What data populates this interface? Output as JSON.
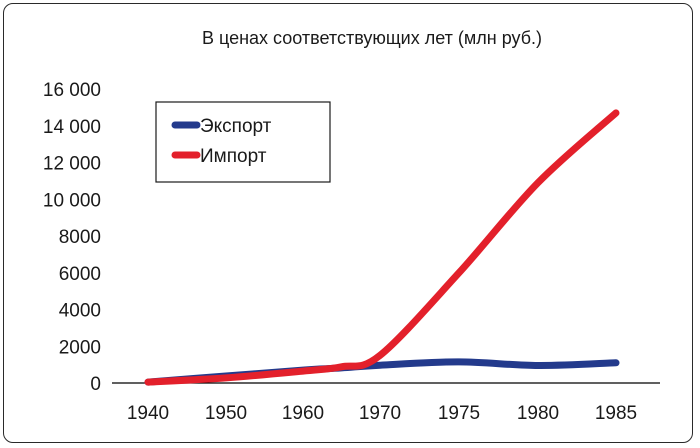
{
  "chart_data": {
    "type": "line",
    "title": "В ценах соответствующих лет (млн руб.)",
    "xlabel": "",
    "ylabel": "",
    "x": [
      1940,
      1945,
      1950,
      1955,
      1960,
      1965,
      1970,
      1975,
      1980,
      1985
    ],
    "x_ticks": [
      "1940",
      "1950",
      "1960",
      "1970",
      "1975",
      "1980",
      "1985"
    ],
    "y_ticks": [
      "0",
      "2000",
      "4000",
      "6000",
      "8000",
      "10 000",
      "12 000",
      "14 000",
      "16 000"
    ],
    "ylim": [
      0,
      16000
    ],
    "grid": false,
    "legend_position": "top-left",
    "series": [
      {
        "name": "Экспорт",
        "color": "#233a8c",
        "points": [
          [
            1940,
            50
          ],
          [
            1950,
            380
          ],
          [
            1960,
            700
          ],
          [
            1965,
            820
          ],
          [
            1970,
            970
          ],
          [
            1975,
            1150
          ],
          [
            1980,
            950
          ],
          [
            1985,
            1100
          ]
        ]
      },
      {
        "name": "Импорт",
        "color": "#e3202b",
        "points": [
          [
            1940,
            50
          ],
          [
            1950,
            280
          ],
          [
            1960,
            650
          ],
          [
            1965,
            880
          ],
          [
            1970,
            1500
          ],
          [
            1975,
            6000
          ],
          [
            1980,
            10900
          ],
          [
            1985,
            14700
          ]
        ]
      }
    ]
  }
}
